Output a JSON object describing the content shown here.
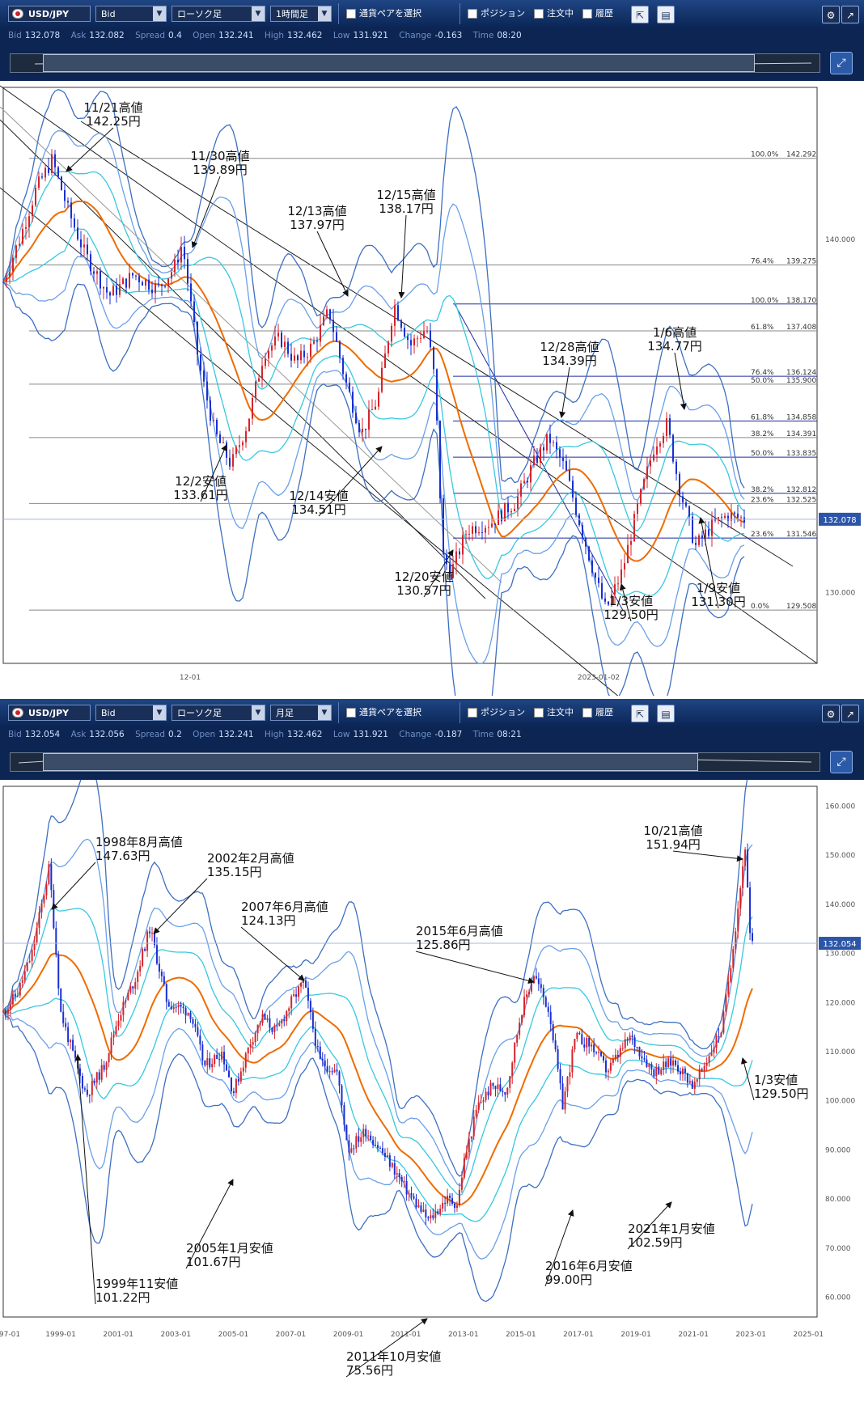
{
  "top": {
    "toolbar": {
      "pair": "USD/JPY",
      "price_type": "Bid",
      "chart_type": "ローソク足",
      "interval": "1時間足",
      "select_pair": "通貨ペアを選択",
      "position": "ポジション",
      "orders": "注文中",
      "history": "履歴"
    },
    "info": {
      "bid_label": "Bid",
      "bid": "132.078",
      "ask_label": "Ask",
      "ask": "132.082",
      "spread_label": "Spread",
      "spread": "0.4",
      "open_label": "Open",
      "open": "132.241",
      "high_label": "High",
      "high": "132.462",
      "low_label": "Low",
      "low": "131.921",
      "change_label": "Change",
      "change": "-0.163",
      "time_label": "Time",
      "time": "08:20"
    },
    "chart_data": {
      "type": "candlestick",
      "ylim": [
        128.0,
        144.3
      ],
      "y_ticks": [
        130.0,
        140.0
      ],
      "y_tick_labels": [
        "130.000",
        "140.000"
      ],
      "x_tick_labels": [
        "12-01",
        "2023-01-02"
      ],
      "current_price": "132.078",
      "path": [
        [
          0,
          138.8
        ],
        [
          4,
          140.0
        ],
        [
          8,
          141.4
        ],
        [
          12,
          142.25
        ],
        [
          16,
          140.8
        ],
        [
          20,
          139.6
        ],
        [
          26,
          138.4
        ],
        [
          32,
          139.0
        ],
        [
          38,
          138.6
        ],
        [
          42,
          139.2
        ],
        [
          44,
          139.89
        ],
        [
          48,
          136.5
        ],
        [
          52,
          134.5
        ],
        [
          56,
          133.61
        ],
        [
          60,
          134.8
        ],
        [
          64,
          136.8
        ],
        [
          68,
          137.2
        ],
        [
          72,
          136.5
        ],
        [
          76,
          137.0
        ],
        [
          80,
          137.97
        ],
        [
          84,
          136.0
        ],
        [
          88,
          134.51
        ],
        [
          92,
          135.5
        ],
        [
          96,
          138.17
        ],
        [
          100,
          137.0
        ],
        [
          104,
          137.5
        ],
        [
          106,
          136.0
        ],
        [
          108,
          131.0
        ],
        [
          110,
          130.57
        ],
        [
          114,
          131.8
        ],
        [
          120,
          132.0
        ],
        [
          126,
          132.6
        ],
        [
          130,
          133.6
        ],
        [
          134,
          134.39
        ],
        [
          138,
          133.5
        ],
        [
          142,
          131.8
        ],
        [
          146,
          130.2
        ],
        [
          148,
          129.5
        ],
        [
          152,
          130.6
        ],
        [
          156,
          132.5
        ],
        [
          160,
          134.2
        ],
        [
          163,
          134.77
        ],
        [
          166,
          133.0
        ],
        [
          170,
          131.3
        ],
        [
          174,
          131.9
        ],
        [
          178,
          132.2
        ],
        [
          182,
          132.078
        ]
      ],
      "annotations_top": [
        {
          "text": "11/21高値",
          "price": "142.25円"
        },
        {
          "text": "11/30高値",
          "price": "139.89円"
        },
        {
          "text": "12/13高値",
          "price": "137.97円"
        },
        {
          "text": "12/15高値",
          "price": "138.17円"
        },
        {
          "text": "12/28高値",
          "price": "134.39円"
        },
        {
          "text": "1/6高値",
          "price": "134.77円"
        },
        {
          "text": "12/2安値",
          "price": "133.61円"
        },
        {
          "text": "12/14安値",
          "price": "134.51円"
        },
        {
          "text": "12/20安値",
          "price": "130.57円"
        },
        {
          "text": "1/3安値",
          "price": "129.50円"
        },
        {
          "text": "1/9安値",
          "price": "131.30円"
        }
      ],
      "fib_set1": [
        {
          "label": "100.0%",
          "value": 142.292,
          "value_label": "142.292"
        },
        {
          "label": "76.4%",
          "value": 139.275,
          "value_label": "139.275"
        },
        {
          "label": "61.8%",
          "value": 137.408,
          "value_label": "137.408"
        },
        {
          "label": "50.0%",
          "value": 135.9,
          "value_label": "135.900"
        },
        {
          "label": "38.2%",
          "value": 134.391,
          "value_label": "134.391"
        },
        {
          "label": "23.6%",
          "value": 132.525,
          "value_label": "132.525"
        },
        {
          "label": "0.0%",
          "value": 129.508,
          "value_label": "129.508"
        }
      ],
      "fib_set2": [
        {
          "label": "100.0%",
          "value": 138.17,
          "value_label": "138.170"
        },
        {
          "label": "76.4%",
          "value": 136.124,
          "value_label": "136.124"
        },
        {
          "label": "61.8%",
          "value": 134.858,
          "value_label": "134.858"
        },
        {
          "label": "50.0%",
          "value": 133.835,
          "value_label": "133.835"
        },
        {
          "label": "38.2%",
          "value": 132.812,
          "value_label": "132.812"
        },
        {
          "label": "23.6%",
          "value": 131.546,
          "value_label": "131.546"
        }
      ]
    }
  },
  "bottom": {
    "toolbar": {
      "pair": "USD/JPY",
      "price_type": "Bid",
      "chart_type": "ローソク足",
      "interval": "月足",
      "select_pair": "通貨ペアを選択",
      "position": "ポジション",
      "orders": "注文中",
      "history": "履歴"
    },
    "info": {
      "bid_label": "Bid",
      "bid": "132.054",
      "ask_label": "Ask",
      "ask": "132.056",
      "spread_label": "Spread",
      "spread": "0.2",
      "open_label": "Open",
      "open": "132.241",
      "high_label": "High",
      "high": "132.462",
      "low_label": "Low",
      "low": "131.921",
      "change_label": "Change",
      "change": "-0.187",
      "time_label": "Time",
      "time": "08:21"
    },
    "chart_data": {
      "type": "candlestick",
      "ylim": [
        56.0,
        164.0
      ],
      "y_ticks": [
        60,
        70,
        80,
        90,
        100,
        110,
        120,
        130,
        140,
        150,
        160
      ],
      "y_tick_labels": [
        "60.000",
        "70.000",
        "80.000",
        "90.000",
        "100.000",
        "110.000",
        "120.000",
        "130.000",
        "140.000",
        "150.000",
        "160.000"
      ],
      "x_range": [
        1997.0,
        2025.3
      ],
      "x_ticks": [
        1997,
        1999,
        2001,
        2003,
        2005,
        2007,
        2009,
        2011,
        2013,
        2015,
        2017,
        2019,
        2021,
        2023,
        2025
      ],
      "x_tick_labels": [
        "97-01",
        "1999-01",
        "2001-01",
        "2003-01",
        "2005-01",
        "2007-01",
        "2009-01",
        "2011-01",
        "2013-01",
        "2015-01",
        "2017-01",
        "2019-01",
        "2021-01",
        "2023-01",
        "2025-01"
      ],
      "current_price": "132.054",
      "path": [
        [
          1997.0,
          118
        ],
        [
          1997.5,
          122
        ],
        [
          1998.0,
          130
        ],
        [
          1998.6,
          147.63
        ],
        [
          1999.0,
          118
        ],
        [
          1999.6,
          106
        ],
        [
          1999.9,
          101.22
        ],
        [
          2000.5,
          107
        ],
        [
          2001.0,
          117
        ],
        [
          2001.6,
          125
        ],
        [
          2002.1,
          135.15
        ],
        [
          2002.7,
          120
        ],
        [
          2003.5,
          118
        ],
        [
          2004.0,
          107
        ],
        [
          2004.6,
          110
        ],
        [
          2005.0,
          101.67
        ],
        [
          2005.6,
          112
        ],
        [
          2006.0,
          117
        ],
        [
          2006.5,
          114
        ],
        [
          2007.0,
          120
        ],
        [
          2007.45,
          124.13
        ],
        [
          2008.0,
          108
        ],
        [
          2008.6,
          106
        ],
        [
          2009.0,
          90
        ],
        [
          2009.6,
          94
        ],
        [
          2010.0,
          91
        ],
        [
          2010.6,
          86
        ],
        [
          2011.0,
          82
        ],
        [
          2011.6,
          77
        ],
        [
          2011.8,
          75.56
        ],
        [
          2012.4,
          80
        ],
        [
          2012.8,
          79
        ],
        [
          2013.0,
          87
        ],
        [
          2013.5,
          99
        ],
        [
          2014.0,
          103
        ],
        [
          2014.5,
          102
        ],
        [
          2015.0,
          118
        ],
        [
          2015.45,
          125.86
        ],
        [
          2016.0,
          118
        ],
        [
          2016.45,
          99.0
        ],
        [
          2016.9,
          113
        ],
        [
          2017.5,
          111
        ],
        [
          2018.0,
          106
        ],
        [
          2018.8,
          113
        ],
        [
          2019.6,
          106
        ],
        [
          2020.3,
          108
        ],
        [
          2020.9,
          104
        ],
        [
          2021.0,
          102.59
        ],
        [
          2021.6,
          110
        ],
        [
          2022.0,
          115
        ],
        [
          2022.5,
          137
        ],
        [
          2022.8,
          151.94
        ],
        [
          2023.0,
          129.5
        ],
        [
          2023.05,
          132.05
        ]
      ],
      "annotations": [
        {
          "text": "1998年8月高値",
          "price": "147.63円"
        },
        {
          "text": "2002年2月高値",
          "price": "135.15円"
        },
        {
          "text": "2007年6月高値",
          "price": "124.13円"
        },
        {
          "text": "2015年6月高値",
          "price": "125.86円"
        },
        {
          "text": "10/21高値",
          "price": "151.94円"
        },
        {
          "text": "1/3安値",
          "price": "129.50円"
        },
        {
          "text": "1999年11安値",
          "price": "101.22円"
        },
        {
          "text": "2005年1月安値",
          "price": "101.67円"
        },
        {
          "text": "2011年10月安値",
          "price": "75.56円"
        },
        {
          "text": "2016年6月安値",
          "price": "99.00円"
        },
        {
          "text": "2021年1月安値",
          "price": "102.59円"
        }
      ]
    }
  },
  "colors": {
    "toolbar_bg": "#0f2e62",
    "bull": "#d4242c",
    "bear": "#1a2fd0",
    "ma_orange": "#ef6c00",
    "band_blue": "#3d6fc0",
    "band_cyan": "#37c8e0",
    "fib_gray": "#888888",
    "fib_navy": "#1c2a9c"
  },
  "icons": [
    "usa-japan-flag-icon",
    "dropdown-arrow-icon",
    "settings-gear-icon",
    "popout-icon",
    "expand-arrow-icon",
    "layout-icon"
  ]
}
